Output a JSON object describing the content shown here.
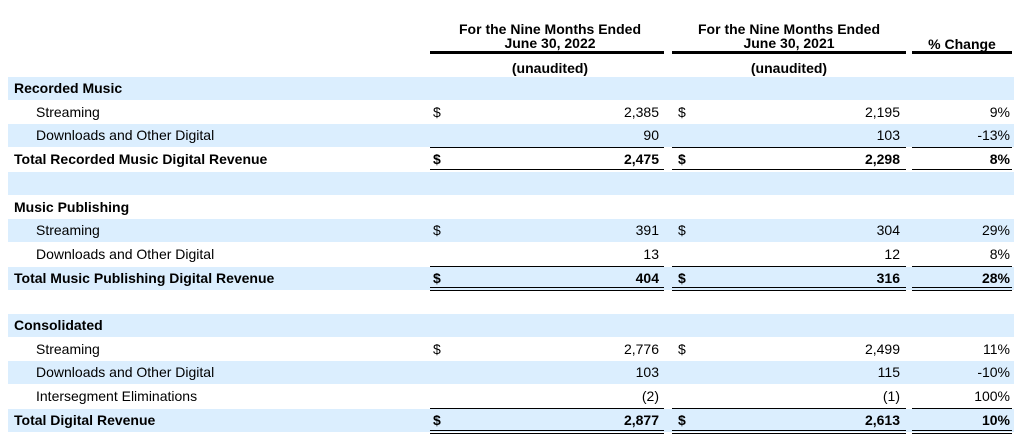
{
  "header": {
    "col1_title": "For the Nine Months Ended\nJune 30, 2022",
    "col1_sub": "(unaudited)",
    "col2_title": "For the Nine Months Ended\nJune 30, 2021",
    "col2_sub": "(unaudited)",
    "col3_title": "% Change"
  },
  "rows": [
    {
      "label": "Recorded Music",
      "type": "section"
    },
    {
      "label": "Streaming",
      "type": "item",
      "d1": "$",
      "v1": "2,385",
      "d2": "$",
      "v2": "2,195",
      "pct": "9%"
    },
    {
      "label": "Downloads and Other Digital",
      "type": "item",
      "v1": "90",
      "v2": "103",
      "pct": "-13%"
    },
    {
      "label": "Total Recorded Music Digital Revenue",
      "type": "total",
      "d1": "$",
      "v1": "2,475",
      "d2": "$",
      "v2": "2,298",
      "pct": "8%"
    },
    {
      "label": "",
      "type": "spacer"
    },
    {
      "label": "Music Publishing",
      "type": "section"
    },
    {
      "label": "Streaming",
      "type": "item",
      "d1": "$",
      "v1": "391",
      "d2": "$",
      "v2": "304",
      "pct": "29%"
    },
    {
      "label": "Downloads and Other Digital",
      "type": "item",
      "v1": "13",
      "v2": "12",
      "pct": "8%"
    },
    {
      "label": "Total Music Publishing Digital Revenue",
      "type": "total",
      "d1": "$",
      "v1": "404",
      "d2": "$",
      "v2": "316",
      "pct": "28%"
    },
    {
      "label": "",
      "type": "spacer"
    },
    {
      "label": "Consolidated",
      "type": "section"
    },
    {
      "label": "Streaming",
      "type": "item",
      "d1": "$",
      "v1": "2,776",
      "d2": "$",
      "v2": "2,499",
      "pct": "11%"
    },
    {
      "label": "Downloads and Other Digital",
      "type": "item",
      "v1": "103",
      "v2": "115",
      "pct": "-10%"
    },
    {
      "label": "Intersegment Eliminations",
      "type": "item",
      "v1": "(2)",
      "v2": "(1)",
      "pct": "100%"
    },
    {
      "label": "Total Digital Revenue",
      "type": "total",
      "d1": "$",
      "v1": "2,877",
      "d2": "$",
      "v2": "2,613",
      "pct": "10%"
    }
  ]
}
